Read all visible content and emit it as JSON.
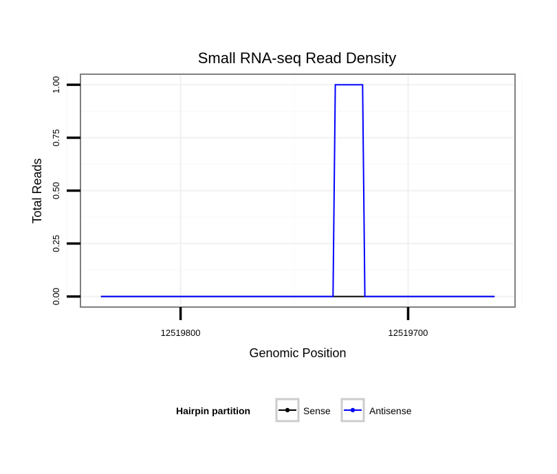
{
  "chart_data": {
    "type": "line",
    "title": "Small RNA-seq Read Density",
    "xlabel": "Genomic Position",
    "ylabel": "Total Reads",
    "xlim": [
      12519844,
      12519653
    ],
    "ylim": [
      -0.05,
      1.05
    ],
    "x_reversed": true,
    "x_ticks": [
      12519800,
      12519700
    ],
    "x_tick_labels": [
      "12519800",
      "12519700"
    ],
    "y_ticks": [
      0,
      0.25,
      0.5,
      0.75,
      1.0
    ],
    "y_tick_labels": [
      "0.00",
      "0.25",
      "0.50",
      "0.75",
      "1.00"
    ],
    "grid": true,
    "legend": {
      "title": "Hairpin partition",
      "position": "bottom"
    },
    "series": [
      {
        "name": "Sense",
        "color": "#000000",
        "x": [
          12519835,
          12519662
        ],
        "y": [
          0,
          0
        ]
      },
      {
        "name": "Antisense",
        "color": "#0000ff",
        "x": [
          12519835,
          12519733,
          12519732,
          12519720,
          12519719,
          12519662
        ],
        "y": [
          0,
          0,
          1,
          1,
          0,
          0
        ]
      }
    ]
  }
}
